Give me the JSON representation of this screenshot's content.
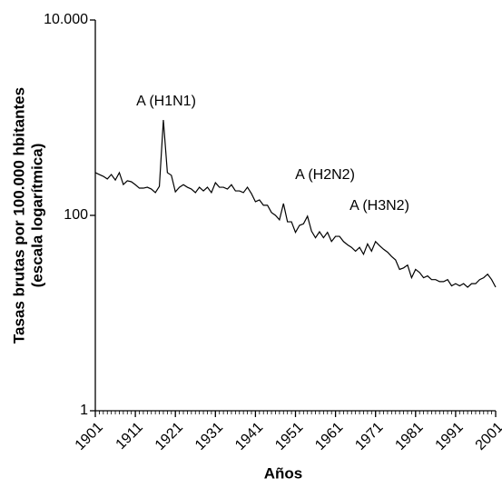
{
  "chart_data": {
    "type": "line",
    "ylabel": [
      "Tasas brutas por 100.000 hbitantes",
      "(escala logarítmica)"
    ],
    "xlabel": "Años",
    "log_y": true,
    "color": "#000000",
    "annotations": [
      "A (H1N1)",
      "A (H2N2)",
      "A (H3N2)"
    ],
    "x": [
      1901,
      1902,
      1903,
      1904,
      1905,
      1906,
      1907,
      1908,
      1909,
      1910,
      1911,
      1912,
      1913,
      1914,
      1915,
      1916,
      1917,
      1918,
      1919,
      1920,
      1921,
      1922,
      1923,
      1924,
      1925,
      1926,
      1927,
      1928,
      1929,
      1930,
      1931,
      1932,
      1933,
      1934,
      1935,
      1936,
      1937,
      1938,
      1939,
      1940,
      1941,
      1942,
      1943,
      1944,
      1945,
      1946,
      1947,
      1948,
      1949,
      1950,
      1951,
      1952,
      1953,
      1954,
      1955,
      1956,
      1957,
      1958,
      1959,
      1960,
      1961,
      1962,
      1963,
      1964,
      1965,
      1966,
      1967,
      1968,
      1969,
      1970,
      1971,
      1972,
      1973,
      1974,
      1975,
      1976,
      1977,
      1978,
      1979,
      1980,
      1981,
      1982,
      1983,
      1984,
      1985,
      1986,
      1987,
      1988,
      1989,
      1990,
      1991,
      1992,
      1993,
      1994,
      1995,
      1996,
      1997,
      1998,
      1999,
      2000,
      2001
    ],
    "values": [
      274,
      262,
      251,
      236,
      262,
      230,
      274,
      207,
      226,
      221,
      206,
      190,
      190,
      194,
      186,
      171,
      198,
      948,
      274,
      257,
      174,
      194,
      206,
      194,
      186,
      171,
      194,
      178,
      194,
      171,
      216,
      194,
      194,
      186,
      206,
      178,
      178,
      171,
      194,
      167,
      138,
      144,
      127,
      127,
      107,
      100,
      90,
      132,
      86,
      86,
      67,
      79,
      82,
      98,
      69,
      59,
      68,
      59,
      67,
      54,
      61,
      61,
      54,
      50,
      47,
      43,
      47,
      40,
      51,
      43,
      54,
      49,
      45,
      42,
      38,
      35,
      28,
      29,
      31,
      23,
      28,
      26,
      23,
      24,
      22,
      22,
      21,
      21,
      22,
      19,
      20,
      19,
      20,
      18.4,
      20,
      20,
      22,
      23,
      25,
      22,
      18.4
    ],
    "xlim": [
      1901,
      2001
    ],
    "xticks": [
      1901,
      1911,
      1921,
      1931,
      1941,
      1951,
      1961,
      1971,
      1981,
      1991,
      2001
    ],
    "ylim": [
      1,
      10000
    ],
    "yticks": [
      1,
      100,
      {
        "value": 10000,
        "label": "10.000"
      }
    ]
  }
}
